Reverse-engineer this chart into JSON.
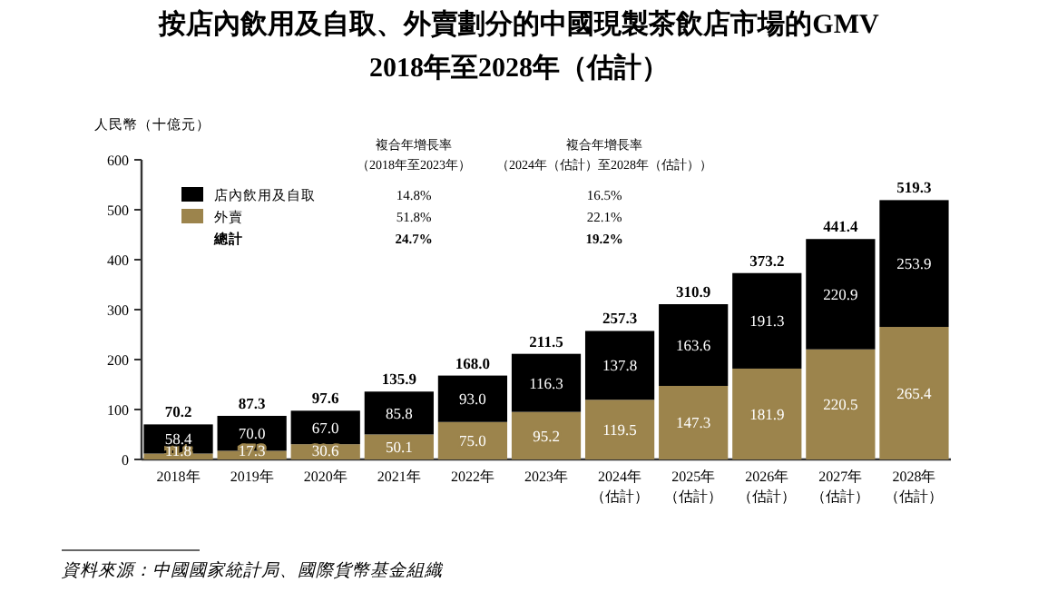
{
  "chart_data": {
    "type": "bar",
    "stacked": true,
    "title": "按店內飲用及自取、外賣劃分的中國現製茶飲店市場的GMV\n2018年至2028年（估計）",
    "ylabel": "人民幣（十億元）",
    "categories": [
      "2018年",
      "2019年",
      "2020年",
      "2021年",
      "2022年",
      "2023年",
      "2024年（估計）",
      "2025年（估計）",
      "2026年（估計）",
      "2027年（估計）",
      "2028年（估計）"
    ],
    "series": [
      {
        "name": "外賣",
        "color": "#9c844c",
        "values": [
          11.8,
          17.3,
          30.6,
          50.1,
          75.0,
          95.2,
          119.5,
          147.3,
          181.9,
          220.5,
          265.4
        ],
        "value_labels": [
          "11.8",
          "17.3",
          "30.6",
          "50.1",
          "75.0",
          "95.2",
          "119.5",
          "147.3",
          "181.9",
          "220.5",
          "265.4"
        ]
      },
      {
        "name": "店內飲用及自取",
        "color": "#000000",
        "values": [
          58.4,
          70.0,
          67.0,
          85.8,
          93.0,
          116.3,
          137.8,
          163.6,
          191.3,
          220.9,
          253.9
        ],
        "value_labels": [
          "58.4",
          "70.0",
          "67.0",
          "85.8",
          "93.0",
          "116.3",
          "137.8",
          "163.6",
          "191.3",
          "220.9",
          "253.9"
        ]
      }
    ],
    "totals": [
      "70.2",
      "87.3",
      "97.6",
      "135.9",
      "168.0",
      "211.5",
      "257.3",
      "310.9",
      "373.2",
      "441.4",
      "519.3"
    ],
    "ylim": [
      0,
      600
    ],
    "yticks": [
      0,
      100,
      200,
      300,
      400,
      500,
      600
    ],
    "legend": "top left",
    "grid": false,
    "annotations": [
      "複合年增長率（2018年至2023年）",
      "14.8%",
      "51.8%",
      "24.7%",
      "複合年增長率（2024年（估計）至2028年（估計））",
      "16.5%",
      "22.1%",
      "19.2%",
      "總計",
      "資料來源：中國國家統計局、國際貨幣基金組織"
    ]
  }
}
